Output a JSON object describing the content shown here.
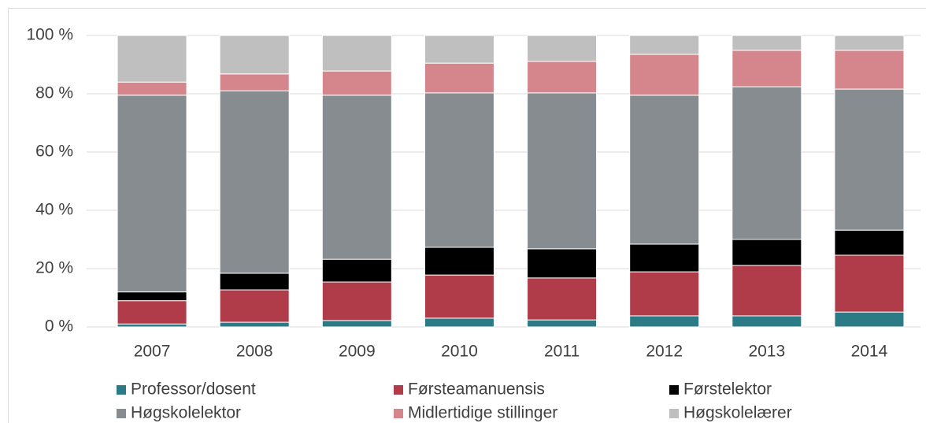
{
  "chart_data": {
    "type": "stacked_bar",
    "categories": [
      "2007",
      "2008",
      "2009",
      "2010",
      "2011",
      "2012",
      "2013",
      "2014"
    ],
    "series": [
      {
        "name": "Professor/dosent",
        "color": "#2a7b86",
        "values": [
          1,
          1.6,
          2.2,
          3,
          2.4,
          3.8,
          3.8,
          5.1
        ]
      },
      {
        "name": "Førsteamanuensis",
        "color": "#b03c4a",
        "values": [
          8,
          11.1,
          13.2,
          14.8,
          14.4,
          15.1,
          17.3,
          19.5
        ]
      },
      {
        "name": "Førstelektor",
        "color": "#000000",
        "values": [
          3,
          5.7,
          7.8,
          9.5,
          10,
          9.5,
          8.9,
          8.6
        ]
      },
      {
        "name": "Høgskolelektor",
        "color": "#878c90",
        "values": [
          67.5,
          62.6,
          56.3,
          53,
          53.5,
          51.1,
          52.4,
          48.4
        ]
      },
      {
        "name": "Midlertidige stillinger",
        "color": "#d4868c",
        "values": [
          4.5,
          5.8,
          8.3,
          10.2,
          10.8,
          14,
          12.5,
          13.3
        ]
      },
      {
        "name": "Høgskolelærer",
        "color": "#bfbfbf",
        "values": [
          16,
          13.2,
          12.2,
          9.5,
          8.9,
          6.5,
          5.1,
          5.1
        ]
      }
    ],
    "ylim": [
      0,
      100
    ],
    "yticks": [
      {
        "value": 0,
        "label": "0 %"
      },
      {
        "value": 20,
        "label": "20 %"
      },
      {
        "value": 40,
        "label": "40 %"
      },
      {
        "value": 60,
        "label": "60 %"
      },
      {
        "value": 80,
        "label": "80 %"
      },
      {
        "value": 100,
        "label": "100 %"
      }
    ],
    "grid": true
  }
}
